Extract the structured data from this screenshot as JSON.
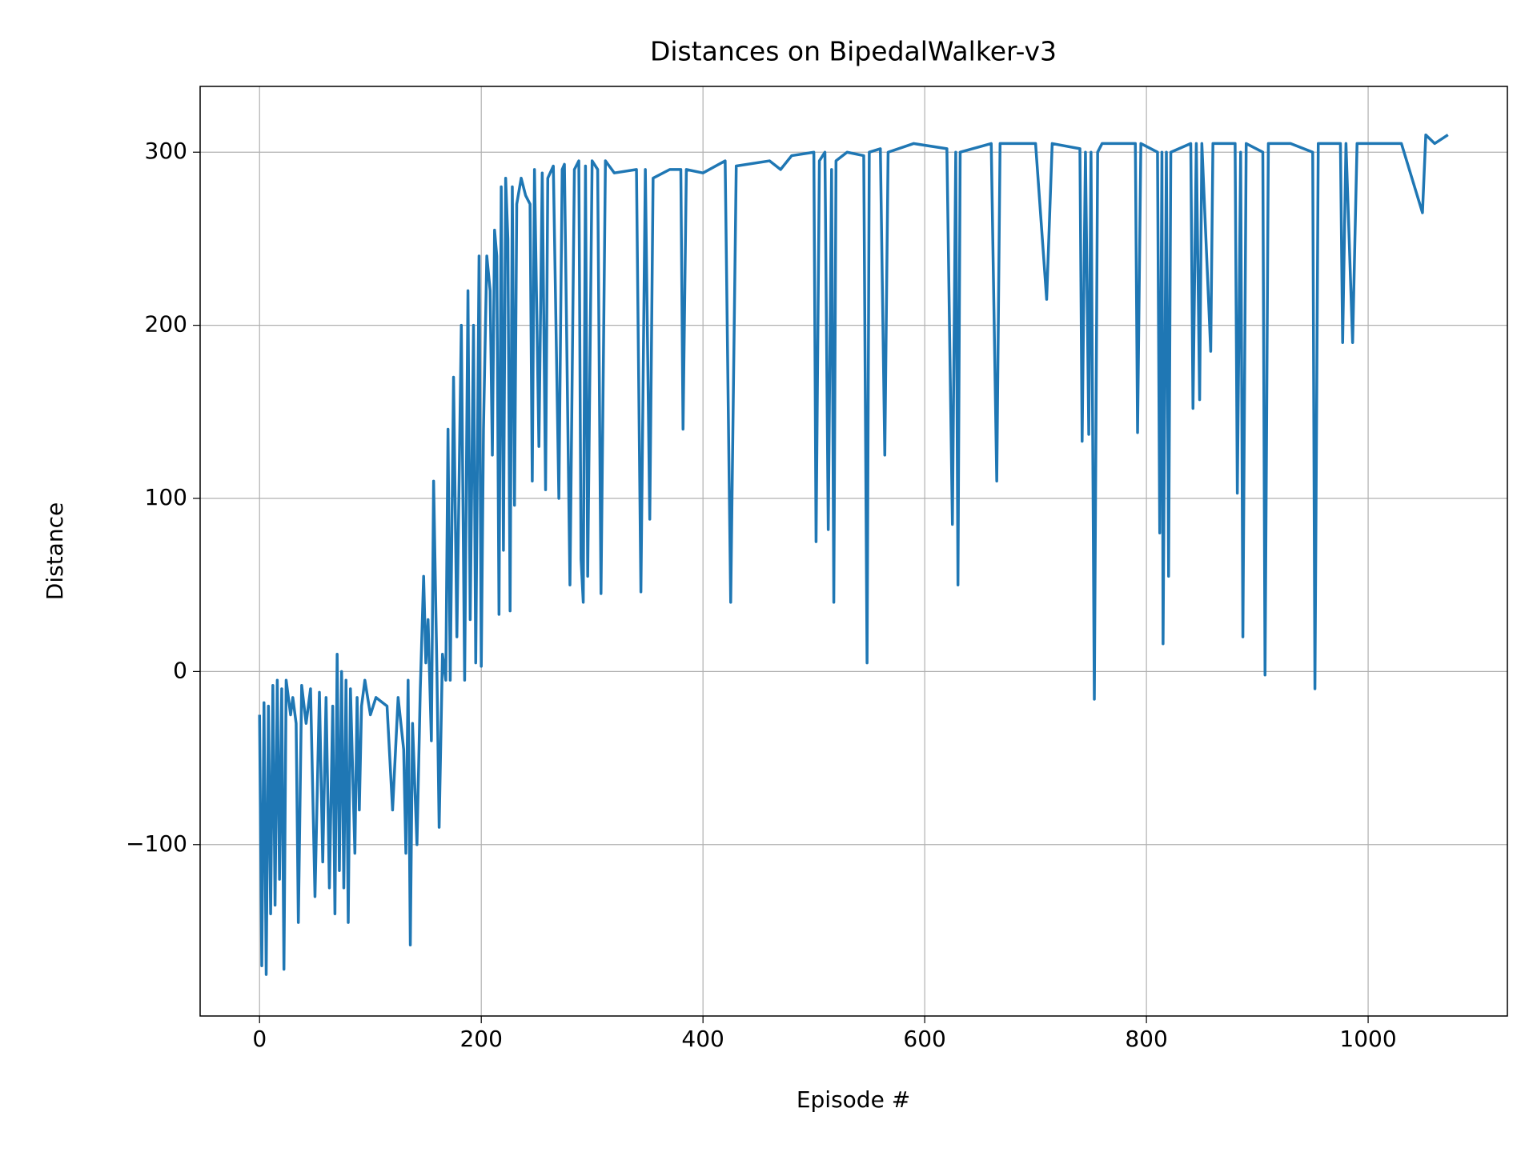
{
  "chart_data": {
    "type": "line",
    "title": "Distances on BipedalWalker-v3",
    "x_label": "Episode #",
    "y_label": "Distance",
    "grid": true,
    "xlim": [
      -53.6,
      1125.6
    ],
    "xticks": [
      0,
      200,
      400,
      600,
      800,
      1000
    ],
    "ylim": [
      -199,
      338
    ],
    "yticks": [
      {
        "value": -100,
        "label": "−100"
      },
      0,
      100,
      200,
      300
    ],
    "series": [
      {
        "name": "Distance",
        "color": "#1f77b4",
        "x": [
          0,
          2,
          4,
          6,
          8,
          10,
          12,
          14,
          16,
          18,
          20,
          22,
          24,
          28,
          30,
          33,
          35,
          38,
          42,
          46,
          50,
          54,
          57,
          60,
          63,
          66,
          68,
          70,
          72,
          74,
          76,
          78,
          80,
          82,
          86,
          88,
          90,
          92,
          95,
          100,
          105,
          115,
          120,
          125,
          130,
          132,
          134,
          136,
          138,
          142,
          145,
          148,
          150,
          152,
          155,
          157,
          160,
          162,
          165,
          168,
          170,
          172,
          175,
          178,
          182,
          185,
          188,
          190,
          193,
          195,
          198,
          200,
          202,
          205,
          208,
          210,
          212,
          214,
          216,
          218,
          220,
          222,
          224,
          226,
          228,
          230,
          232,
          236,
          240,
          244,
          246,
          248,
          252,
          255,
          258,
          260,
          265,
          270,
          273,
          275,
          280,
          284,
          288,
          290,
          292,
          294,
          296,
          300,
          305,
          308,
          312,
          320,
          340,
          344,
          348,
          352,
          355,
          370,
          380,
          382,
          385,
          400,
          420,
          425,
          430,
          460,
          470,
          480,
          500,
          502,
          505,
          510,
          513,
          516,
          518,
          520,
          530,
          545,
          548,
          550,
          560,
          564,
          567,
          590,
          620,
          625,
          628,
          630,
          632,
          660,
          665,
          668,
          700,
          710,
          715,
          740,
          742,
          745,
          748,
          750,
          753,
          756,
          760,
          790,
          792,
          795,
          810,
          812,
          814,
          815,
          818,
          820,
          822,
          840,
          842,
          845,
          848,
          850,
          858,
          860,
          880,
          882,
          885,
          887,
          890,
          905,
          907,
          910,
          930,
          950,
          952,
          955,
          975,
          977,
          980,
          986,
          990,
          1030,
          1049,
          1052,
          1060,
          1072
        ],
        "values": [
          -25,
          -170,
          -18,
          -175,
          -20,
          -140,
          -8,
          -135,
          -5,
          -120,
          -10,
          -172,
          -5,
          -25,
          -15,
          -30,
          -145,
          -8,
          -30,
          -10,
          -130,
          -12,
          -110,
          -15,
          -125,
          -20,
          -140,
          10,
          -115,
          0,
          -125,
          -5,
          -145,
          -10,
          -105,
          -15,
          -80,
          -20,
          -5,
          -25,
          -15,
          -20,
          -80,
          -15,
          -45,
          -105,
          -5,
          -158,
          -30,
          -100,
          -10,
          55,
          5,
          30,
          -40,
          110,
          0,
          -90,
          10,
          -5,
          140,
          -5,
          170,
          20,
          200,
          -5,
          220,
          30,
          200,
          5,
          240,
          3,
          140,
          240,
          220,
          125,
          255,
          240,
          33,
          280,
          70,
          285,
          250,
          35,
          280,
          96,
          270,
          285,
          275,
          270,
          110,
          290,
          130,
          288,
          105,
          285,
          292,
          100,
          290,
          293,
          50,
          290,
          295,
          65,
          40,
          292,
          55,
          295,
          290,
          45,
          295,
          288,
          290,
          46,
          290,
          88,
          285,
          290,
          290,
          140,
          290,
          288,
          295,
          40,
          292,
          295,
          290,
          298,
          300,
          75,
          295,
          300,
          82,
          290,
          40,
          295,
          300,
          298,
          5,
          300,
          302,
          125,
          300,
          305,
          302,
          85,
          300,
          50,
          300,
          305,
          110,
          305,
          305,
          215,
          305,
          302,
          133,
          300,
          137,
          300,
          -16,
          300,
          305,
          305,
          138,
          305,
          300,
          80,
          300,
          16,
          300,
          55,
          300,
          305,
          152,
          305,
          157,
          305,
          185,
          305,
          305,
          103,
          300,
          20,
          305,
          300,
          -2,
          305,
          305,
          300,
          -10,
          305,
          305,
          190,
          305,
          190,
          305,
          305,
          265,
          310,
          305,
          310
        ]
      }
    ]
  }
}
